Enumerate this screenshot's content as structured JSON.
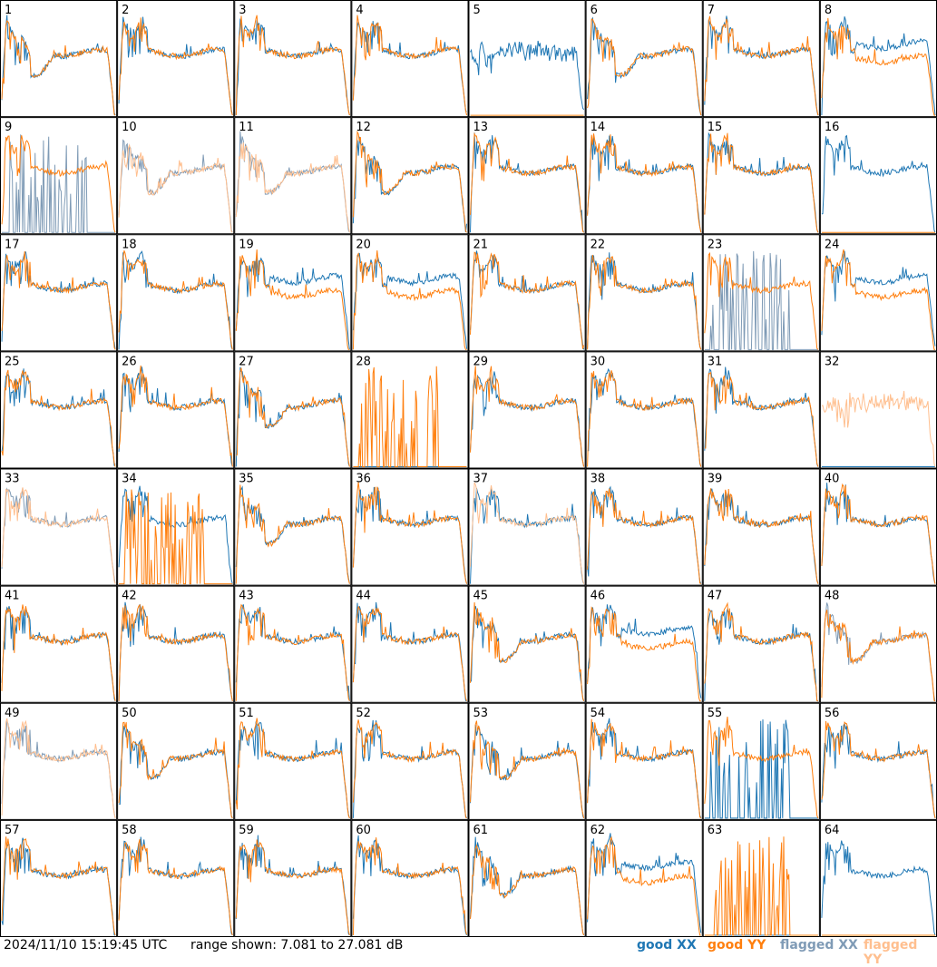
{
  "footer": {
    "timestamp": "2024/11/10 15:19:45 UTC",
    "range_text": "range shown: 7.081 to 27.081 dB",
    "legend": [
      {
        "text": "good XX",
        "color": "#1f77b4"
      },
      {
        "text": "good YY",
        "color": "#ff7f0e"
      },
      {
        "text": "flagged XX",
        "color": "#7f9bb6"
      },
      {
        "text": "flagged YY",
        "color": "#ffbf8f"
      }
    ]
  },
  "chart_data": {
    "type": "line",
    "layout": "8x8 grid of small multiples",
    "ylim_db": [
      7.081,
      27.081
    ],
    "colors": {
      "good_xx": "#1f77b4",
      "good_yy": "#ff7f0e",
      "flagged_xx": "#7f9bb6",
      "flagged_yy": "#ffbf8f"
    },
    "panels": [
      {
        "label": "1",
        "xx": "good",
        "yy": "good",
        "shape": "dipped"
      },
      {
        "label": "2",
        "xx": "good",
        "yy": "good",
        "shape": "normal"
      },
      {
        "label": "3",
        "xx": "good",
        "yy": "good",
        "shape": "normal"
      },
      {
        "label": "4",
        "xx": "good",
        "yy": "good",
        "shape": "normal"
      },
      {
        "label": "5",
        "xx": "good",
        "yy": "dead",
        "shape": "noisy"
      },
      {
        "label": "6",
        "xx": "good",
        "yy": "good",
        "shape": "dipped"
      },
      {
        "label": "7",
        "xx": "good",
        "yy": "good",
        "shape": "normal"
      },
      {
        "label": "8",
        "xx": "good",
        "yy": "good",
        "shape": "split"
      },
      {
        "label": "9",
        "xx": "flagged",
        "yy": "good",
        "shape": "spiky-xx"
      },
      {
        "label": "10",
        "xx": "flagged",
        "yy": "flagged",
        "shape": "dipped"
      },
      {
        "label": "11",
        "xx": "flagged",
        "yy": "flagged",
        "shape": "dipped"
      },
      {
        "label": "12",
        "xx": "good",
        "yy": "good",
        "shape": "dipped"
      },
      {
        "label": "13",
        "xx": "good",
        "yy": "good",
        "shape": "normal"
      },
      {
        "label": "14",
        "xx": "good",
        "yy": "good",
        "shape": "normal"
      },
      {
        "label": "15",
        "xx": "good",
        "yy": "good",
        "shape": "normal"
      },
      {
        "label": "16",
        "xx": "good",
        "yy": "dead",
        "shape": "normal"
      },
      {
        "label": "17",
        "xx": "good",
        "yy": "good",
        "shape": "normal"
      },
      {
        "label": "18",
        "xx": "good",
        "yy": "good",
        "shape": "normal"
      },
      {
        "label": "19",
        "xx": "good",
        "yy": "good",
        "shape": "split"
      },
      {
        "label": "20",
        "xx": "good",
        "yy": "good",
        "shape": "split"
      },
      {
        "label": "21",
        "xx": "good",
        "yy": "good",
        "shape": "normal"
      },
      {
        "label": "22",
        "xx": "good",
        "yy": "good",
        "shape": "normal"
      },
      {
        "label": "23",
        "xx": "flagged",
        "yy": "good",
        "shape": "spiky-xx"
      },
      {
        "label": "24",
        "xx": "good",
        "yy": "good",
        "shape": "split"
      },
      {
        "label": "25",
        "xx": "good",
        "yy": "good",
        "shape": "normal"
      },
      {
        "label": "26",
        "xx": "good",
        "yy": "good",
        "shape": "normal"
      },
      {
        "label": "27",
        "xx": "good",
        "yy": "good",
        "shape": "dipped"
      },
      {
        "label": "28",
        "xx": "dead",
        "yy": "good",
        "shape": "spiky-yy"
      },
      {
        "label": "29",
        "xx": "good",
        "yy": "good",
        "shape": "normal"
      },
      {
        "label": "30",
        "xx": "good",
        "yy": "good",
        "shape": "normal"
      },
      {
        "label": "31",
        "xx": "good",
        "yy": "good",
        "shape": "normal"
      },
      {
        "label": "32",
        "xx": "dead",
        "yy": "flagged",
        "shape": "noisy"
      },
      {
        "label": "33",
        "xx": "flagged",
        "yy": "flagged",
        "shape": "normal"
      },
      {
        "label": "34",
        "xx": "good",
        "yy": "good",
        "shape": "spiky-yy"
      },
      {
        "label": "35",
        "xx": "good",
        "yy": "good",
        "shape": "dipped"
      },
      {
        "label": "36",
        "xx": "good",
        "yy": "good",
        "shape": "normal"
      },
      {
        "label": "37",
        "xx": "good",
        "yy": "flagged",
        "shape": "normal"
      },
      {
        "label": "38",
        "xx": "good",
        "yy": "good",
        "shape": "normal"
      },
      {
        "label": "39",
        "xx": "good",
        "yy": "good",
        "shape": "normal"
      },
      {
        "label": "40",
        "xx": "good",
        "yy": "good",
        "shape": "normal"
      },
      {
        "label": "41",
        "xx": "good",
        "yy": "good",
        "shape": "normal"
      },
      {
        "label": "42",
        "xx": "good",
        "yy": "good",
        "shape": "normal"
      },
      {
        "label": "43",
        "xx": "good",
        "yy": "good",
        "shape": "normal"
      },
      {
        "label": "44",
        "xx": "good",
        "yy": "good",
        "shape": "normal"
      },
      {
        "label": "45",
        "xx": "good",
        "yy": "good",
        "shape": "dipped"
      },
      {
        "label": "46",
        "xx": "good",
        "yy": "good",
        "shape": "split"
      },
      {
        "label": "47",
        "xx": "good",
        "yy": "good",
        "shape": "normal"
      },
      {
        "label": "48",
        "xx": "flagged",
        "yy": "good",
        "shape": "dipped"
      },
      {
        "label": "49",
        "xx": "flagged",
        "yy": "flagged",
        "shape": "normal"
      },
      {
        "label": "50",
        "xx": "good",
        "yy": "good",
        "shape": "dipped"
      },
      {
        "label": "51",
        "xx": "good",
        "yy": "good",
        "shape": "normal"
      },
      {
        "label": "52",
        "xx": "good",
        "yy": "good",
        "shape": "normal"
      },
      {
        "label": "53",
        "xx": "good",
        "yy": "good",
        "shape": "dipped"
      },
      {
        "label": "54",
        "xx": "good",
        "yy": "good",
        "shape": "normal"
      },
      {
        "label": "55",
        "xx": "good",
        "yy": "good",
        "shape": "spiky-xx"
      },
      {
        "label": "56",
        "xx": "good",
        "yy": "good",
        "shape": "normal"
      },
      {
        "label": "57",
        "xx": "good",
        "yy": "good",
        "shape": "normal"
      },
      {
        "label": "58",
        "xx": "good",
        "yy": "good",
        "shape": "normal"
      },
      {
        "label": "59",
        "xx": "good",
        "yy": "good",
        "shape": "normal"
      },
      {
        "label": "60",
        "xx": "good",
        "yy": "good",
        "shape": "normal"
      },
      {
        "label": "61",
        "xx": "good",
        "yy": "good",
        "shape": "dipped"
      },
      {
        "label": "62",
        "xx": "good",
        "yy": "good",
        "shape": "split"
      },
      {
        "label": "63",
        "xx": "dead",
        "yy": "good",
        "shape": "spiky-yy"
      },
      {
        "label": "64",
        "xx": "good",
        "yy": "dead",
        "shape": "normal"
      }
    ]
  }
}
